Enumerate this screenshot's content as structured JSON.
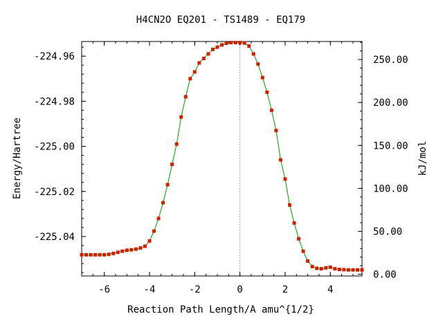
{
  "chart_data": {
    "type": "line",
    "title": "H4CN2O   EQ201 - TS1489 - EQ179",
    "xlabel": "Reaction Path Length/A amu^{1/2}",
    "ylabel": "Energy/Hartree",
    "y2label": "kJ/mol",
    "xlim": [
      -7.0,
      5.4
    ],
    "ylim": [
      -225.0575,
      -224.9535
    ],
    "y2lim": [
      -2.0,
      271.0
    ],
    "x_ticks": [
      -6,
      -4,
      -2,
      0,
      2,
      4
    ],
    "x_tick_labels": [
      "-6",
      "-4",
      "-2",
      "0",
      "2",
      "4"
    ],
    "y_ticks": [
      -224.96,
      -224.98,
      -225.0,
      -225.02,
      -225.04
    ],
    "y_tick_labels": [
      "-224.96",
      "-224.98",
      "-225.00",
      "-225.02",
      "-225.04"
    ],
    "y2_ticks": [
      0,
      50,
      100,
      150,
      200,
      250
    ],
    "y2_tick_labels": [
      "0.00",
      "50.00",
      "100.00",
      "150.00",
      "200.00",
      "250.00"
    ],
    "ts_marker_x": 0,
    "grid": false,
    "colors": {
      "line": "#009900",
      "marker": "#cc2200",
      "ts_line": "#999999"
    },
    "series": [
      {
        "x": [
          -7.0,
          -6.8,
          -6.6,
          -6.4,
          -6.2,
          -6.0,
          -5.8,
          -5.6,
          -5.4,
          -5.2,
          -5.0,
          -4.8,
          -4.6,
          -4.4,
          -4.2,
          -4.0,
          -3.8,
          -3.6,
          -3.4,
          -3.2,
          -3.0,
          -2.8,
          -2.6,
          -2.4,
          -2.2,
          -2.0,
          -1.8,
          -1.6,
          -1.4,
          -1.2,
          -1.0,
          -0.8,
          -0.6,
          -0.4,
          -0.2,
          0.0,
          0.2,
          0.4,
          0.6,
          0.8,
          1.0,
          1.2,
          1.4,
          1.6,
          1.8,
          2.0,
          2.2,
          2.4,
          2.6,
          2.8,
          3.0,
          3.2,
          3.4,
          3.6,
          3.8,
          4.0,
          4.2,
          4.4,
          4.6,
          4.8,
          5.0,
          5.2,
          5.4
        ],
        "y": [
          -225.0481,
          -225.0481,
          -225.0481,
          -225.0481,
          -225.0481,
          -225.0481,
          -225.0479,
          -225.0475,
          -225.047,
          -225.0465,
          -225.0461,
          -225.0459,
          -225.0456,
          -225.0451,
          -225.0443,
          -225.042,
          -225.0376,
          -225.032,
          -225.025,
          -225.017,
          -225.008,
          -224.999,
          -224.987,
          -224.978,
          -224.97,
          -224.967,
          -224.963,
          -224.961,
          -224.959,
          -224.957,
          -224.956,
          -224.955,
          -224.9543,
          -224.954,
          -224.954,
          -224.954,
          -224.9542,
          -224.9555,
          -224.959,
          -224.9635,
          -224.9695,
          -224.976,
          -224.984,
          -224.993,
          -225.006,
          -225.0145,
          -225.026,
          -225.034,
          -225.041,
          -225.0465,
          -225.0509,
          -225.0533,
          -225.0541,
          -225.0543,
          -225.0539,
          -225.0536,
          -225.0543,
          -225.0546,
          -225.0547,
          -225.0548,
          -225.0548,
          -225.0548,
          -225.0548
        ]
      }
    ]
  }
}
